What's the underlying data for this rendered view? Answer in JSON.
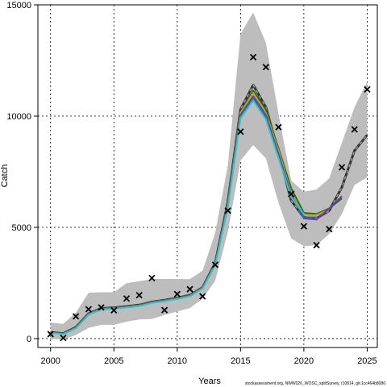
{
  "chart_data": {
    "type": "line",
    "xlabel": "Years",
    "ylabel": "Catch",
    "source_note": "stockassessment.org, NWW026_WOSC_splitSurvey, r10814, git:1cc464b8086",
    "xlim": [
      1999.0,
      2025.8
    ],
    "ylim": [
      -400,
      15000
    ],
    "x_ticks": [
      2000,
      2005,
      2010,
      2015,
      2020,
      2025
    ],
    "y_ticks": [
      0,
      5000,
      10000,
      15000
    ],
    "grid": true,
    "confidence_band": {
      "x": [
        2000,
        2001,
        2002,
        2003,
        2004,
        2005,
        2006,
        2007,
        2008,
        2009,
        2010,
        2011,
        2012,
        2013,
        2014,
        2015,
        2016,
        2017,
        2018,
        2019,
        2020,
        2021,
        2022,
        2023,
        2024,
        2025
      ],
      "lower": [
        -20,
        -40,
        160,
        480,
        620,
        620,
        760,
        860,
        880,
        1060,
        1220,
        1370,
        1790,
        2600,
        4800,
        8000,
        8700,
        8100,
        6100,
        4500,
        4150,
        4200,
        4700,
        5600,
        6900,
        7250
      ],
      "upper": [
        720,
        660,
        1170,
        2060,
        2080,
        2080,
        2490,
        2580,
        2680,
        2680,
        2680,
        2670,
        3050,
        4750,
        7800,
        13700,
        14650,
        13300,
        10100,
        7100,
        6600,
        6700,
        7200,
        8800,
        10400,
        11550
      ]
    },
    "observed": {
      "x": [
        2000,
        2001,
        2002,
        2003,
        2004,
        2005,
        2006,
        2007,
        2008,
        2009,
        2010,
        2011,
        2012,
        2013,
        2014,
        2015,
        2016,
        2017,
        2018,
        2019,
        2020,
        2021,
        2022,
        2023,
        2024,
        2025
      ],
      "y": [
        200,
        30,
        1000,
        1320,
        1400,
        1270,
        1800,
        1950,
        2720,
        1280,
        2000,
        2220,
        1900,
        3320,
        5750,
        9300,
        12650,
        12200,
        9500,
        6500,
        5050,
        4200,
        4920,
        7700,
        9400,
        11200
      ]
    },
    "series": [
      {
        "color": "#333333",
        "dashed": true,
        "x": [
          2000,
          2001,
          2002,
          2003,
          2004,
          2005,
          2006,
          2007,
          2008,
          2009,
          2010,
          2011,
          2012,
          2013,
          2014,
          2015,
          2016,
          2017,
          2018,
          2019,
          2020,
          2021,
          2022,
          2023,
          2024,
          2025
        ],
        "y": [
          280,
          230,
          510,
          1120,
          1360,
          1390,
          1450,
          1510,
          1650,
          1730,
          1830,
          1950,
          2300,
          3400,
          6150,
          10300,
          11400,
          10400,
          8350,
          6200,
          5450,
          5400,
          5750,
          6800,
          8450,
          9150
        ]
      },
      {
        "color": "#1f6b1f",
        "x": [
          2000,
          2001,
          2002,
          2003,
          2004,
          2005,
          2006,
          2007,
          2008,
          2009,
          2010,
          2011,
          2012,
          2013,
          2014,
          2015,
          2016,
          2017,
          2018,
          2019,
          2020,
          2021,
          2022,
          2023
        ],
        "y": [
          270,
          220,
          500,
          1110,
          1350,
          1380,
          1440,
          1500,
          1640,
          1720,
          1820,
          1940,
          2290,
          3380,
          6100,
          10200,
          11150,
          10300,
          8550,
          6750,
          5650,
          5600,
          5850,
          6300
        ]
      },
      {
        "color": "#c8a020",
        "x": [
          2000,
          2001,
          2002,
          2003,
          2004,
          2005,
          2006,
          2007,
          2008,
          2009,
          2010,
          2011,
          2012,
          2013,
          2014,
          2015,
          2016,
          2017,
          2018,
          2019,
          2020,
          2021,
          2022
        ],
        "y": [
          265,
          215,
          490,
          1100,
          1340,
          1370,
          1430,
          1490,
          1630,
          1710,
          1810,
          1930,
          2280,
          3360,
          6050,
          10150,
          11050,
          10150,
          8450,
          6550,
          5550,
          5550,
          5800
        ]
      },
      {
        "color": "#6a3fa0",
        "x": [
          2000,
          2001,
          2002,
          2003,
          2004,
          2005,
          2006,
          2007,
          2008,
          2009,
          2010,
          2011,
          2012,
          2013,
          2014,
          2015,
          2016,
          2017,
          2018,
          2019,
          2020,
          2021,
          2022,
          2023
        ],
        "y": [
          260,
          210,
          480,
          1090,
          1330,
          1360,
          1420,
          1480,
          1620,
          1700,
          1800,
          1920,
          2270,
          3340,
          6000,
          10050,
          10900,
          10050,
          8300,
          6450,
          5400,
          5350,
          5850,
          6400
        ]
      },
      {
        "color": "#2a6bb0",
        "x": [
          2000,
          2001,
          2002,
          2003,
          2004,
          2005,
          2006,
          2007,
          2008,
          2009,
          2010,
          2011,
          2012,
          2013,
          2014,
          2015,
          2016,
          2017,
          2018,
          2019,
          2020,
          2021
        ],
        "y": [
          255,
          205,
          470,
          1080,
          1320,
          1350,
          1410,
          1470,
          1610,
          1690,
          1790,
          1910,
          2260,
          3320,
          5950,
          10000,
          10800,
          9950,
          8200,
          6400,
          5450,
          5450
        ]
      },
      {
        "color": "#3ec0c8",
        "x": [
          2000,
          2001,
          2002,
          2003,
          2004,
          2005,
          2006,
          2007,
          2008,
          2009,
          2010,
          2011,
          2012,
          2013,
          2014,
          2015,
          2016,
          2017,
          2018,
          2019,
          2020
        ],
        "y": [
          250,
          200,
          460,
          1070,
          1310,
          1340,
          1400,
          1460,
          1600,
          1680,
          1780,
          1900,
          2250,
          3300,
          5900,
          9900,
          10700,
          9850,
          8100,
          6350,
          5600
        ]
      }
    ]
  }
}
